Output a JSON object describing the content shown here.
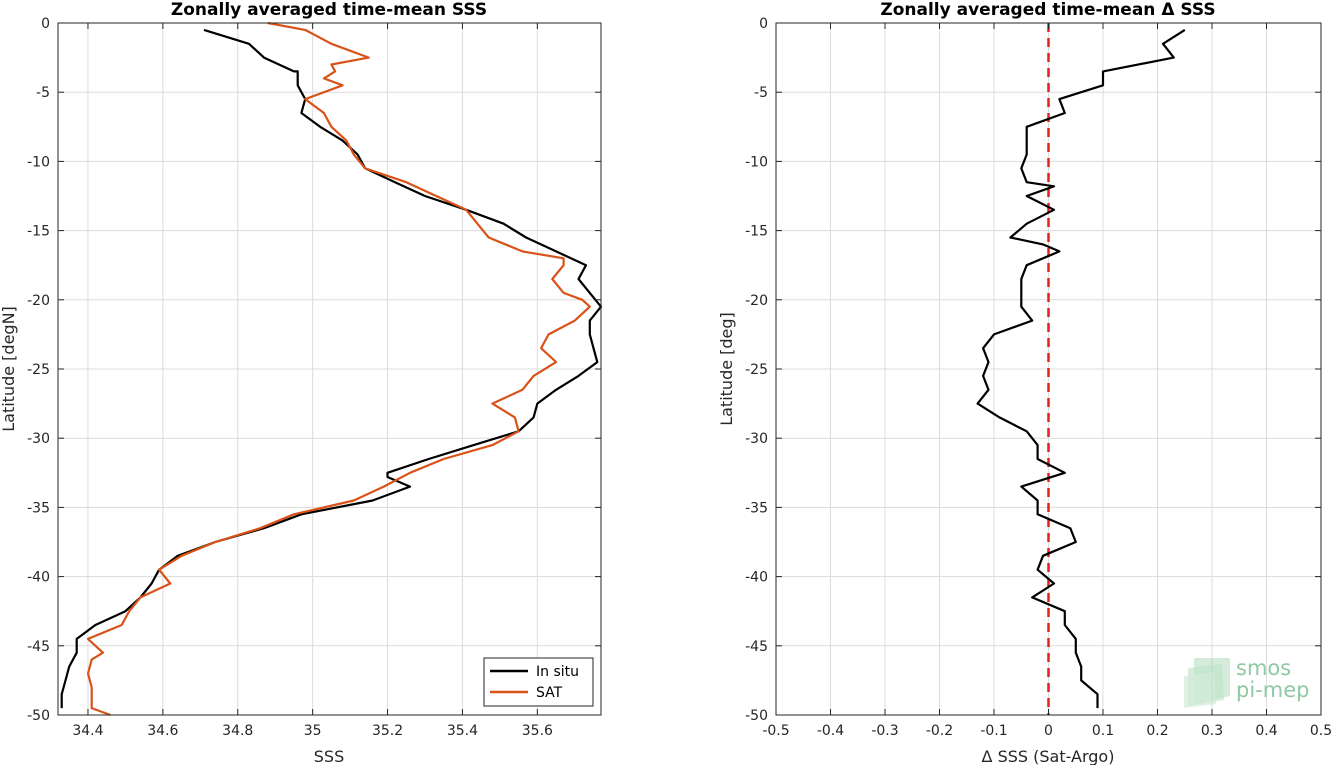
{
  "chart_data": [
    {
      "type": "line",
      "title": "Zonally averaged time-mean SSS",
      "xlabel": "SSS",
      "ylabel": "Latitude [degN]",
      "xlim": [
        34.32,
        35.77
      ],
      "ylim": [
        -50,
        0
      ],
      "xticks": [
        34.4,
        34.6,
        34.8,
        35,
        35.2,
        35.4,
        35.6
      ],
      "yticks": [
        0,
        -5,
        -10,
        -15,
        -20,
        -25,
        -30,
        -35,
        -40,
        -45,
        -50
      ],
      "grid": true,
      "legend_position": "bottom-right",
      "series": [
        {
          "name": "In situ",
          "color": "#000000",
          "points": [
            [
              34.71,
              -0.5
            ],
            [
              34.83,
              -1.5
            ],
            [
              34.87,
              -2.5
            ],
            [
              34.95,
              -3.5
            ],
            [
              34.96,
              -3.5
            ],
            [
              34.96,
              -4.5
            ],
            [
              34.98,
              -5.5
            ],
            [
              34.97,
              -6.5
            ],
            [
              35.02,
              -7.5
            ],
            [
              35.08,
              -8.5
            ],
            [
              35.12,
              -9.5
            ],
            [
              35.14,
              -10.5
            ],
            [
              35.22,
              -11.5
            ],
            [
              35.3,
              -12.5
            ],
            [
              35.41,
              -13.5
            ],
            [
              35.51,
              -14.5
            ],
            [
              35.57,
              -15.5
            ],
            [
              35.65,
              -16.5
            ],
            [
              35.73,
              -17.5
            ],
            [
              35.71,
              -18.5
            ],
            [
              35.74,
              -19.5
            ],
            [
              35.77,
              -20.5
            ],
            [
              35.74,
              -21.5
            ],
            [
              35.74,
              -22.5
            ],
            [
              35.75,
              -23.5
            ],
            [
              35.76,
              -24.5
            ],
            [
              35.71,
              -25.5
            ],
            [
              35.65,
              -26.5
            ],
            [
              35.6,
              -27.5
            ],
            [
              35.59,
              -28.5
            ],
            [
              35.55,
              -29.5
            ],
            [
              35.43,
              -30.5
            ],
            [
              35.31,
              -31.5
            ],
            [
              35.2,
              -32.5
            ],
            [
              35.2,
              -32.8
            ],
            [
              35.26,
              -33.5
            ],
            [
              35.16,
              -34.5
            ],
            [
              34.97,
              -35.5
            ],
            [
              34.87,
              -36.5
            ],
            [
              34.74,
              -37.5
            ],
            [
              34.64,
              -38.5
            ],
            [
              34.59,
              -39.5
            ],
            [
              34.57,
              -40.5
            ],
            [
              34.54,
              -41.5
            ],
            [
              34.5,
              -42.5
            ],
            [
              34.42,
              -43.5
            ],
            [
              34.37,
              -44.5
            ],
            [
              34.37,
              -45.5
            ],
            [
              34.35,
              -46.5
            ],
            [
              34.34,
              -47.5
            ],
            [
              34.33,
              -48.5
            ],
            [
              34.33,
              -49.5
            ]
          ]
        },
        {
          "name": "SAT",
          "color": "#d95319",
          "points": [
            [
              34.88,
              0
            ],
            [
              34.98,
              -0.5
            ],
            [
              35.05,
              -1.5
            ],
            [
              35.15,
              -2.5
            ],
            [
              35.05,
              -3.0
            ],
            [
              35.06,
              -3.5
            ],
            [
              35.03,
              -4.0
            ],
            [
              35.08,
              -4.5
            ],
            [
              34.98,
              -5.5
            ],
            [
              35.03,
              -6.5
            ],
            [
              35.05,
              -7.5
            ],
            [
              35.09,
              -8.5
            ],
            [
              35.11,
              -9.5
            ],
            [
              35.14,
              -10.5
            ],
            [
              35.25,
              -11.5
            ],
            [
              35.33,
              -12.5
            ],
            [
              35.41,
              -13.5
            ],
            [
              35.44,
              -14.5
            ],
            [
              35.47,
              -15.5
            ],
            [
              35.56,
              -16.5
            ],
            [
              35.67,
              -17.0
            ],
            [
              35.67,
              -17.5
            ],
            [
              35.64,
              -18.5
            ],
            [
              35.67,
              -19.5
            ],
            [
              35.72,
              -20.0
            ],
            [
              35.74,
              -20.5
            ],
            [
              35.7,
              -21.5
            ],
            [
              35.63,
              -22.5
            ],
            [
              35.61,
              -23.5
            ],
            [
              35.65,
              -24.5
            ],
            [
              35.59,
              -25.5
            ],
            [
              35.56,
              -26.5
            ],
            [
              35.48,
              -27.5
            ],
            [
              35.54,
              -28.5
            ],
            [
              35.55,
              -29.5
            ],
            [
              35.48,
              -30.5
            ],
            [
              35.35,
              -31.5
            ],
            [
              35.26,
              -32.5
            ],
            [
              35.19,
              -33.5
            ],
            [
              35.11,
              -34.5
            ],
            [
              34.95,
              -35.5
            ],
            [
              34.86,
              -36.5
            ],
            [
              34.74,
              -37.5
            ],
            [
              34.65,
              -38.5
            ],
            [
              34.59,
              -39.5
            ],
            [
              34.62,
              -40.5
            ],
            [
              34.54,
              -41.5
            ],
            [
              34.51,
              -42.5
            ],
            [
              34.49,
              -43.5
            ],
            [
              34.4,
              -44.5
            ],
            [
              34.44,
              -45.5
            ],
            [
              34.41,
              -46.0
            ],
            [
              34.4,
              -47.0
            ],
            [
              34.41,
              -48.0
            ],
            [
              34.41,
              -49.5
            ],
            [
              34.46,
              -50
            ]
          ]
        }
      ]
    },
    {
      "type": "line",
      "title": "Zonally averaged time-mean Δ SSS",
      "xlabel": "Δ SSS (Sat-Argo)",
      "ylabel": "Latitude [deg]",
      "xlim": [
        -0.5,
        0.5
      ],
      "ylim": [
        -50,
        0
      ],
      "xticks": [
        -0.5,
        -0.4,
        -0.3,
        -0.2,
        -0.1,
        0,
        0.1,
        0.2,
        0.3,
        0.4,
        0.5
      ],
      "yticks": [
        0,
        -5,
        -10,
        -15,
        -20,
        -25,
        -30,
        -35,
        -40,
        -45,
        -50
      ],
      "grid": true,
      "reference_line": {
        "x": 0,
        "color": "#e6201b",
        "style": "dashed"
      },
      "series": [
        {
          "color": "#000000",
          "points": [
            [
              0.25,
              -0.5
            ],
            [
              0.21,
              -1.5
            ],
            [
              0.23,
              -2.5
            ],
            [
              0.1,
              -3.5
            ],
            [
              0.1,
              -4.5
            ],
            [
              0.02,
              -5.5
            ],
            [
              0.03,
              -6.5
            ],
            [
              -0.04,
              -7.5
            ],
            [
              -0.04,
              -8.5
            ],
            [
              -0.04,
              -9.5
            ],
            [
              -0.05,
              -10.5
            ],
            [
              -0.04,
              -11.5
            ],
            [
              0.01,
              -11.8
            ],
            [
              -0.04,
              -12.5
            ],
            [
              0.01,
              -13.5
            ],
            [
              -0.04,
              -14.5
            ],
            [
              -0.07,
              -15.5
            ],
            [
              -0.01,
              -16.0
            ],
            [
              0.02,
              -16.5
            ],
            [
              -0.04,
              -17.5
            ],
            [
              -0.05,
              -18.5
            ],
            [
              -0.05,
              -19.5
            ],
            [
              -0.05,
              -20.5
            ],
            [
              -0.03,
              -21.5
            ],
            [
              -0.1,
              -22.5
            ],
            [
              -0.12,
              -23.5
            ],
            [
              -0.11,
              -24.5
            ],
            [
              -0.12,
              -25.5
            ],
            [
              -0.11,
              -26.5
            ],
            [
              -0.13,
              -27.5
            ],
            [
              -0.09,
              -28.5
            ],
            [
              -0.04,
              -29.5
            ],
            [
              -0.02,
              -30.5
            ],
            [
              -0.02,
              -31.5
            ],
            [
              0.03,
              -32.5
            ],
            [
              -0.05,
              -33.5
            ],
            [
              -0.02,
              -34.5
            ],
            [
              -0.02,
              -35.5
            ],
            [
              0.04,
              -36.5
            ],
            [
              0.05,
              -37.5
            ],
            [
              -0.01,
              -38.5
            ],
            [
              -0.02,
              -39.5
            ],
            [
              0.01,
              -40.5
            ],
            [
              -0.03,
              -41.5
            ],
            [
              0.03,
              -42.5
            ],
            [
              0.03,
              -43.5
            ],
            [
              0.05,
              -44.5
            ],
            [
              0.05,
              -45.5
            ],
            [
              0.06,
              -46.5
            ],
            [
              0.06,
              -47.5
            ],
            [
              0.09,
              -48.5
            ],
            [
              0.09,
              -49.5
            ]
          ]
        }
      ]
    }
  ],
  "legend": {
    "items": [
      "In situ",
      "SAT"
    ]
  },
  "logo": {
    "line1": "smos",
    "line2": "pi-mep",
    "color": "#8fc9a2"
  }
}
